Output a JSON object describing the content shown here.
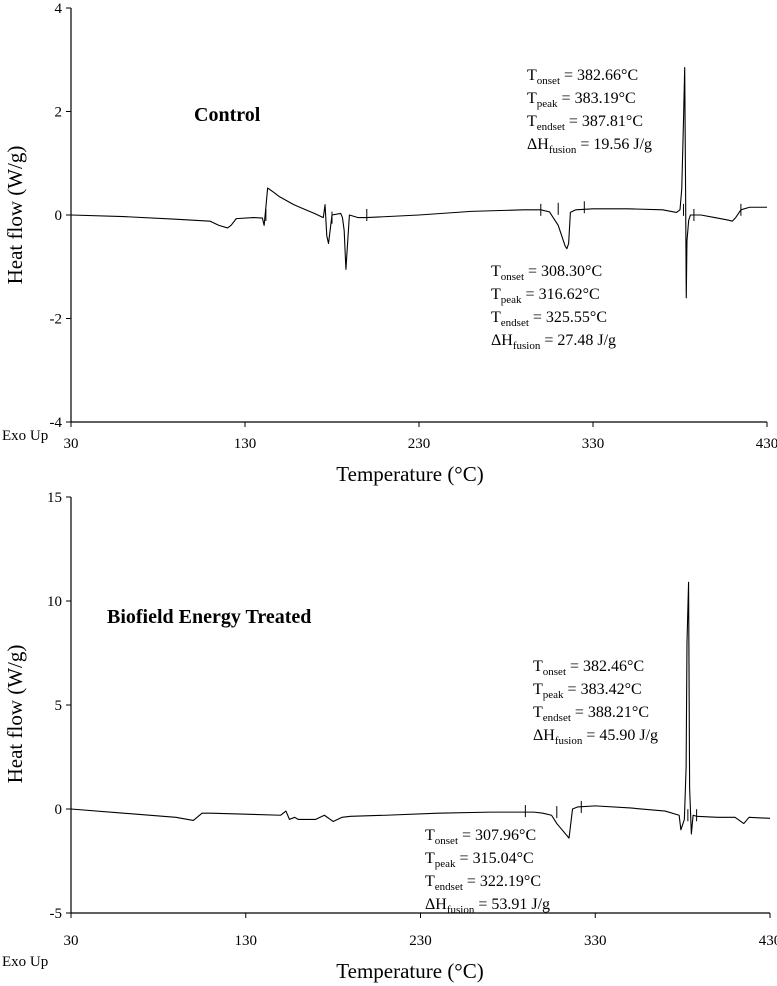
{
  "chart_data": [
    {
      "type": "line",
      "title": "Control",
      "xlabel": "Temperature (°C)",
      "ylabel": "Heat flow (W/g)",
      "exo_label": "Exo Up",
      "xlim": [
        30,
        430
      ],
      "ylim": [
        -4,
        4
      ],
      "xticks": [
        "30",
        "130",
        "230",
        "330",
        "430"
      ],
      "yticks": [
        "4",
        "2",
        "0",
        "-2",
        "-4"
      ],
      "grid": false,
      "series": [
        {
          "x": [
            30,
            60,
            90,
            110,
            115,
            120,
            122,
            125,
            135,
            140,
            141,
            142,
            143,
            144,
            146,
            150,
            158,
            165,
            170,
            175,
            176,
            177,
            178,
            180,
            185,
            186,
            187,
            188,
            190,
            195,
            200,
            230,
            260,
            290,
            300,
            305,
            310,
            312,
            314,
            315,
            316,
            317,
            320,
            330,
            350,
            370,
            378,
            380,
            381,
            382,
            382.7,
            383.2,
            383.6,
            384,
            385,
            386,
            388,
            392,
            400,
            408,
            410,
            412,
            415,
            420,
            430
          ],
          "y": [
            0,
            -0.03,
            -0.08,
            -0.12,
            -0.2,
            -0.25,
            -0.2,
            -0.07,
            -0.05,
            -0.06,
            -0.2,
            0.15,
            0.52,
            0.5,
            0.45,
            0.35,
            0.2,
            0.1,
            0.03,
            -0.05,
            0.2,
            -0.4,
            -0.55,
            0,
            0.03,
            -0.05,
            -0.3,
            -1.05,
            0,
            -0.05,
            -0.05,
            0,
            0.07,
            0.1,
            0.1,
            0.06,
            -0.2,
            -0.4,
            -0.6,
            -0.65,
            -0.55,
            0.05,
            0.1,
            0.12,
            0.12,
            0.1,
            0.05,
            0.1,
            0.5,
            1.8,
            2.85,
            0.5,
            -1.6,
            -0.5,
            -0.1,
            0,
            0,
            0,
            -0.05,
            -0.1,
            -0.12,
            -0.05,
            0.1,
            0.15,
            0.15
          ]
        }
      ],
      "annotations": [
        {
          "lines": [
            [
              "T",
              "onset",
              " = 382.66°C"
            ],
            [
              "T",
              "peak",
              " = 383.19°C"
            ],
            [
              "T",
              "endset",
              " = 387.81°C"
            ],
            [
              "ΔH",
              "fusion",
              " = 19.56 J/g"
            ]
          ]
        },
        {
          "lines": [
            [
              "T",
              "onset",
              " = 308.30°C"
            ],
            [
              "T",
              "peak",
              " = 316.62°C"
            ],
            [
              "T",
              "endset",
              " = 325.55°C"
            ],
            [
              "ΔH",
              "fusion",
              " = 27.48 J/g"
            ]
          ]
        }
      ]
    },
    {
      "type": "line",
      "title": "Biofield Energy Treated",
      "xlabel": "Temperature (°C)",
      "ylabel": "Heat flow (W/g)",
      "exo_label": "Exo Up",
      "xlim": [
        30,
        430
      ],
      "ylim": [
        -5,
        15
      ],
      "xticks": [
        "30",
        "130",
        "230",
        "330",
        "430"
      ],
      "yticks": [
        "15",
        "10",
        "5",
        "0",
        "-5"
      ],
      "grid": false,
      "series": [
        {
          "x": [
            30,
            60,
            90,
            100,
            105,
            110,
            130,
            150,
            153,
            155,
            158,
            160,
            170,
            175,
            180,
            185,
            190,
            210,
            240,
            270,
            295,
            300,
            305,
            308,
            311,
            315,
            317,
            320,
            330,
            350,
            370,
            378,
            379,
            381,
            382,
            382.5,
            383.4,
            384,
            385,
            386,
            388,
            400,
            410,
            415,
            418,
            430
          ],
          "y": [
            0,
            -0.2,
            -0.4,
            -0.55,
            -0.2,
            -0.2,
            -0.25,
            -0.3,
            -0.1,
            -0.5,
            -0.4,
            -0.5,
            -0.5,
            -0.3,
            -0.6,
            -0.4,
            -0.35,
            -0.3,
            -0.2,
            -0.15,
            -0.15,
            -0.2,
            -0.3,
            -0.7,
            -1.0,
            -1.4,
            0,
            0.1,
            0.15,
            0.05,
            -0.1,
            -0.3,
            -1.0,
            -0.5,
            2,
            8,
            10.9,
            1,
            -1.2,
            -0.3,
            -0.35,
            -0.4,
            -0.4,
            -0.7,
            -0.4,
            -0.45
          ]
        }
      ],
      "annotations": [
        {
          "lines": [
            [
              "T",
              "onset",
              " = 382.46°C"
            ],
            [
              "T",
              "peak",
              " = 383.42°C"
            ],
            [
              "T",
              "endset",
              " = 388.21°C"
            ],
            [
              "ΔH",
              "fusion",
              " = 45.90 J/g"
            ]
          ]
        },
        {
          "lines": [
            [
              "T",
              "onset",
              " = 307.96°C"
            ],
            [
              "T",
              "peak",
              " = 315.04°C"
            ],
            [
              "T",
              "endset",
              " = 322.19°C"
            ],
            [
              "ΔH",
              "fusion",
              " = 53.91 J/g"
            ]
          ]
        }
      ]
    }
  ]
}
